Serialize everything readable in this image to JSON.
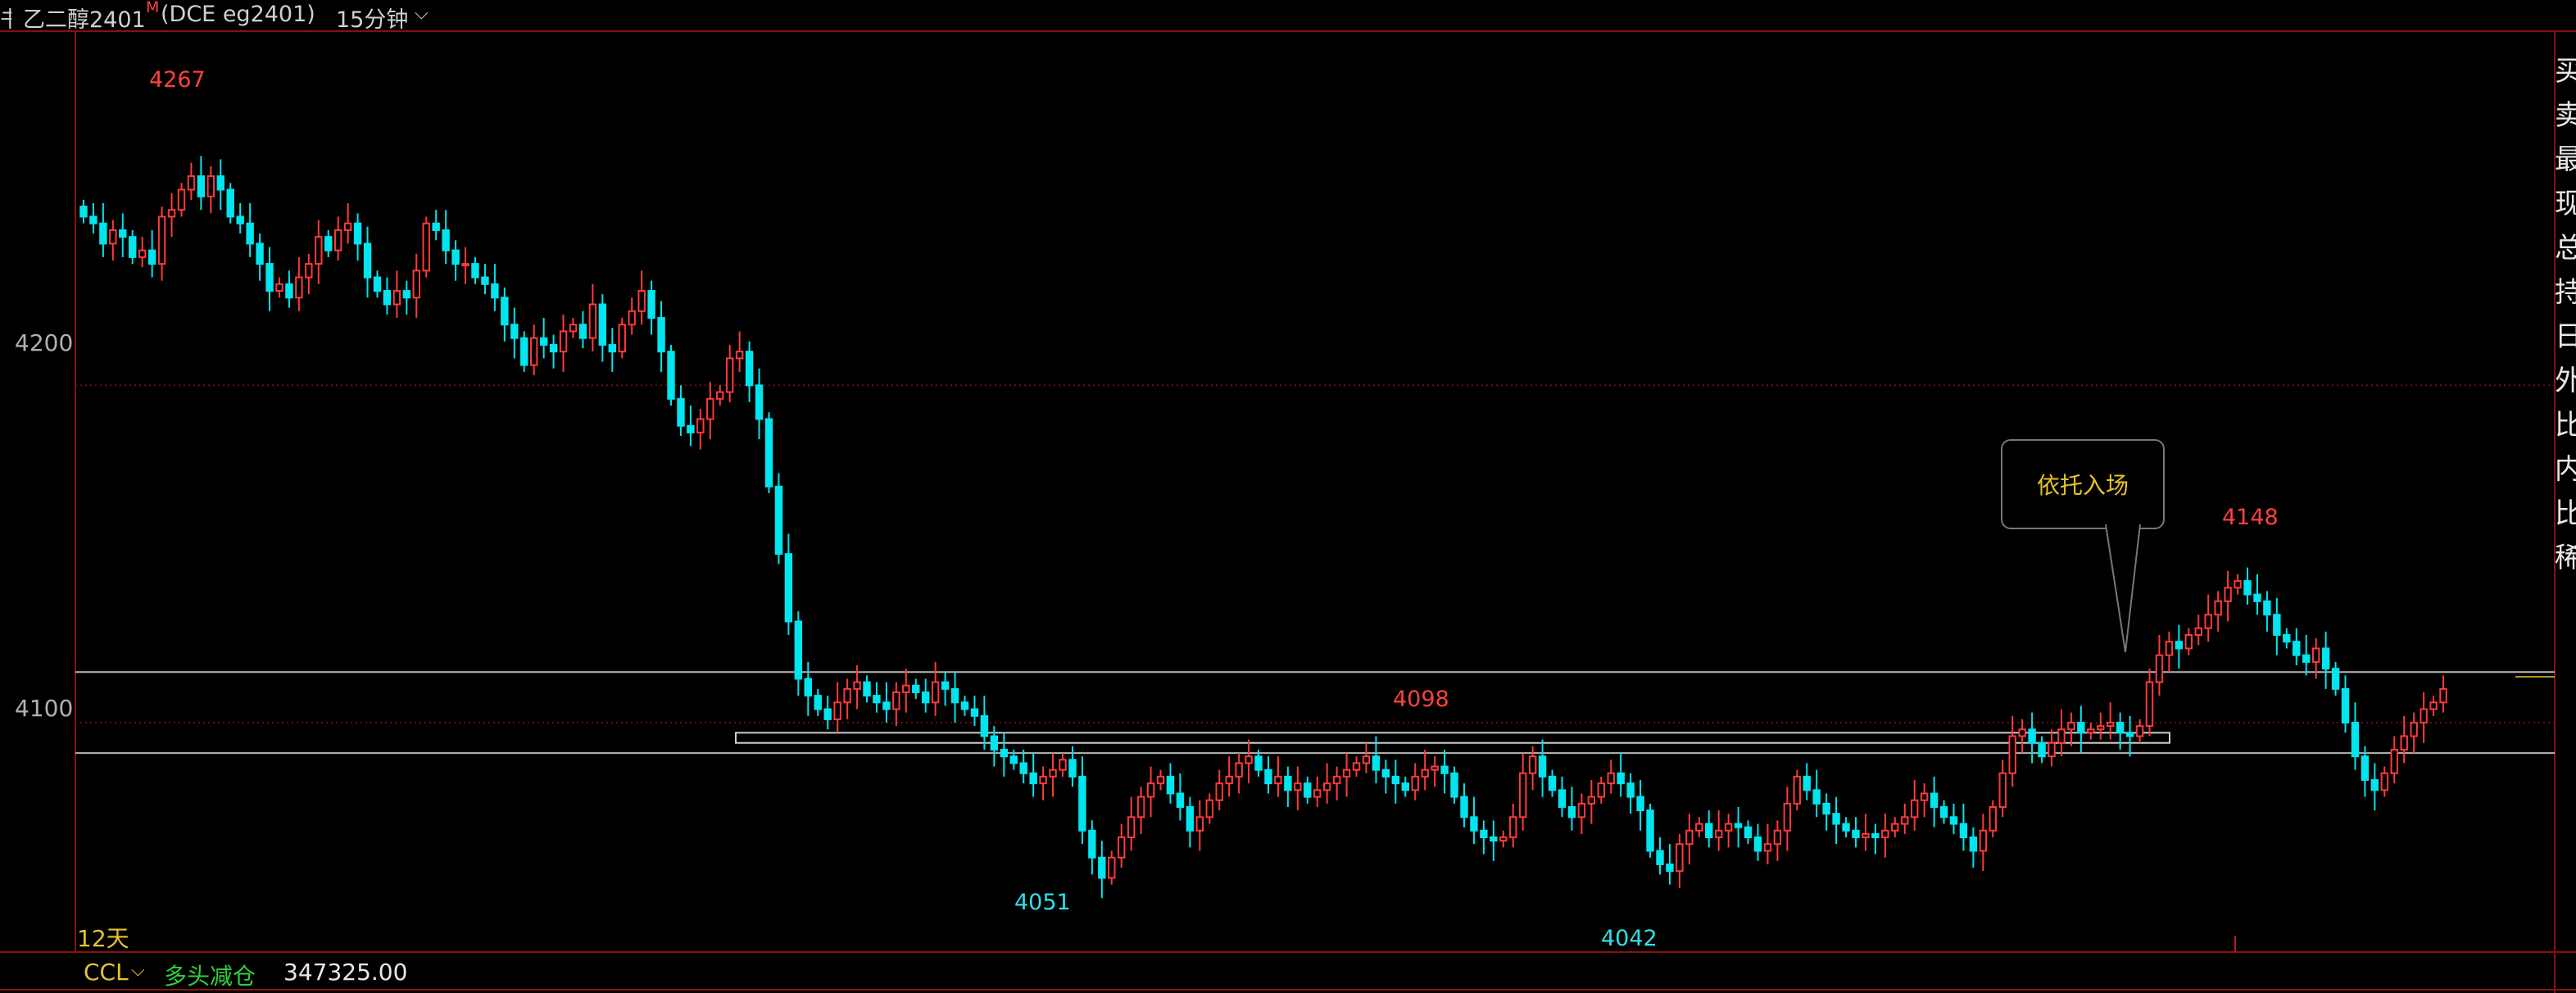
{
  "header": {
    "left_icon": "书",
    "instrument": "乙二醇2401",
    "marker": "M",
    "code": "(DCE eg2401)",
    "period": "15分钟",
    "dropdown_icon": "chevron-down-icon"
  },
  "chart_data": {
    "type": "candlestick",
    "ylim": [
      4032,
      4305
    ],
    "yticks": [
      4200,
      4100
    ],
    "y_tick_labels": [
      "4200",
      "4100"
    ],
    "grid": "horizontal dotted",
    "colors": {
      "up": "#ff3a3a",
      "down": "#00e5ee",
      "background": "#000000"
    },
    "closes": [
      4250,
      4248,
      4242,
      4246,
      4244,
      4238,
      4240,
      4236,
      4250,
      4252,
      4258,
      4262,
      4256,
      4262,
      4258,
      4250,
      4248,
      4242,
      4236,
      4228,
      4230,
      4226,
      4232,
      4236,
      4244,
      4240,
      4246,
      4248,
      4242,
      4232,
      4228,
      4224,
      4228,
      4226,
      4234,
      4248,
      4246,
      4240,
      4236,
      4236,
      4232,
      4230,
      4226,
      4218,
      4214,
      4206,
      4214,
      4212,
      4210,
      4216,
      4218,
      4214,
      4224,
      4212,
      4210,
      4218,
      4222,
      4228,
      4220,
      4210,
      4196,
      4188,
      4186,
      4190,
      4196,
      4198,
      4208,
      4210,
      4200,
      4190,
      4170,
      4150,
      4130,
      4113,
      4108,
      4104,
      4101,
      4106,
      4110,
      4112,
      4108,
      4106,
      4104,
      4109,
      4111,
      4109,
      4106,
      4112,
      4110,
      4106,
      4104,
      4102,
      4096,
      4092,
      4090,
      4088,
      4085,
      4082,
      4084,
      4086,
      4089,
      4084,
      4068,
      4060,
      4054,
      4060,
      4066,
      4072,
      4078,
      4082,
      4084,
      4079,
      4075,
      4068,
      4072,
      4077,
      4082,
      4084,
      4088,
      4090,
      4086,
      4082,
      4084,
      4080,
      4082,
      4078,
      4080,
      4082,
      4084,
      4086,
      4088,
      4090,
      4086,
      4084,
      4082,
      4080,
      4084,
      4086,
      4087,
      4085,
      4078,
      4072,
      4068,
      4066,
      4065,
      4066,
      4072,
      4085,
      4090,
      4084,
      4080,
      4075,
      4072,
      4076,
      4078,
      4082,
      4085,
      4082,
      4078,
      4074,
      4062,
      4058,
      4056,
      4064,
      4068,
      4070,
      4066,
      4068,
      4070,
      4069,
      4066,
      4062,
      4064,
      4068,
      4076,
      4084,
      4080,
      4076,
      4073,
      4070,
      4068,
      4066,
      4067,
      4066,
      4068,
      4070,
      4072,
      4077,
      4079,
      4075,
      4072,
      4070,
      4066,
      4062,
      4068,
      4075,
      4085,
      4096,
      4098,
      4094,
      4090,
      4094,
      4098,
      4100,
      4097,
      4098,
      4099,
      4100,
      4097,
      4096,
      4099,
      4112,
      4120,
      4124,
      4122,
      4126,
      4128,
      4132,
      4136,
      4140,
      4142,
      4138,
      4136,
      4132,
      4126,
      4124,
      4120,
      4118,
      4122,
      4116,
      4110,
      4100,
      4090,
      4083,
      4080,
      4085,
      4092,
      4096,
      4100,
      4104,
      4106,
      4110
    ],
    "annotations": [
      {
        "label": "4267",
        "value": 4267,
        "kind": "high",
        "color": "#ff4040"
      },
      {
        "label": "4098",
        "value": 4098,
        "kind": "local-high",
        "color": "#ff4040"
      },
      {
        "label": "4148",
        "value": 4148,
        "kind": "high",
        "color": "#ff4040"
      },
      {
        "label": "4051",
        "value": 4051,
        "kind": "low",
        "color": "#30e0e8"
      },
      {
        "label": "4042",
        "value": 4042,
        "kind": "low",
        "color": "#30e0e8"
      }
    ],
    "horizontal_lines": [
      4115,
      4091
    ],
    "zone": {
      "top": 4097,
      "bottom": 4094
    },
    "callout_text": "依托入场"
  },
  "footer": {
    "days": "12天",
    "indicator": "CCL",
    "indicator_dropdown_icon": "chevron-down-icon",
    "status": "多头减仓",
    "value": "347325.00"
  },
  "right_panel": {
    "chars": [
      "买",
      "卖",
      "最",
      "现",
      "总",
      "持",
      "日",
      "外",
      "比",
      "内",
      "比",
      "稀"
    ]
  }
}
